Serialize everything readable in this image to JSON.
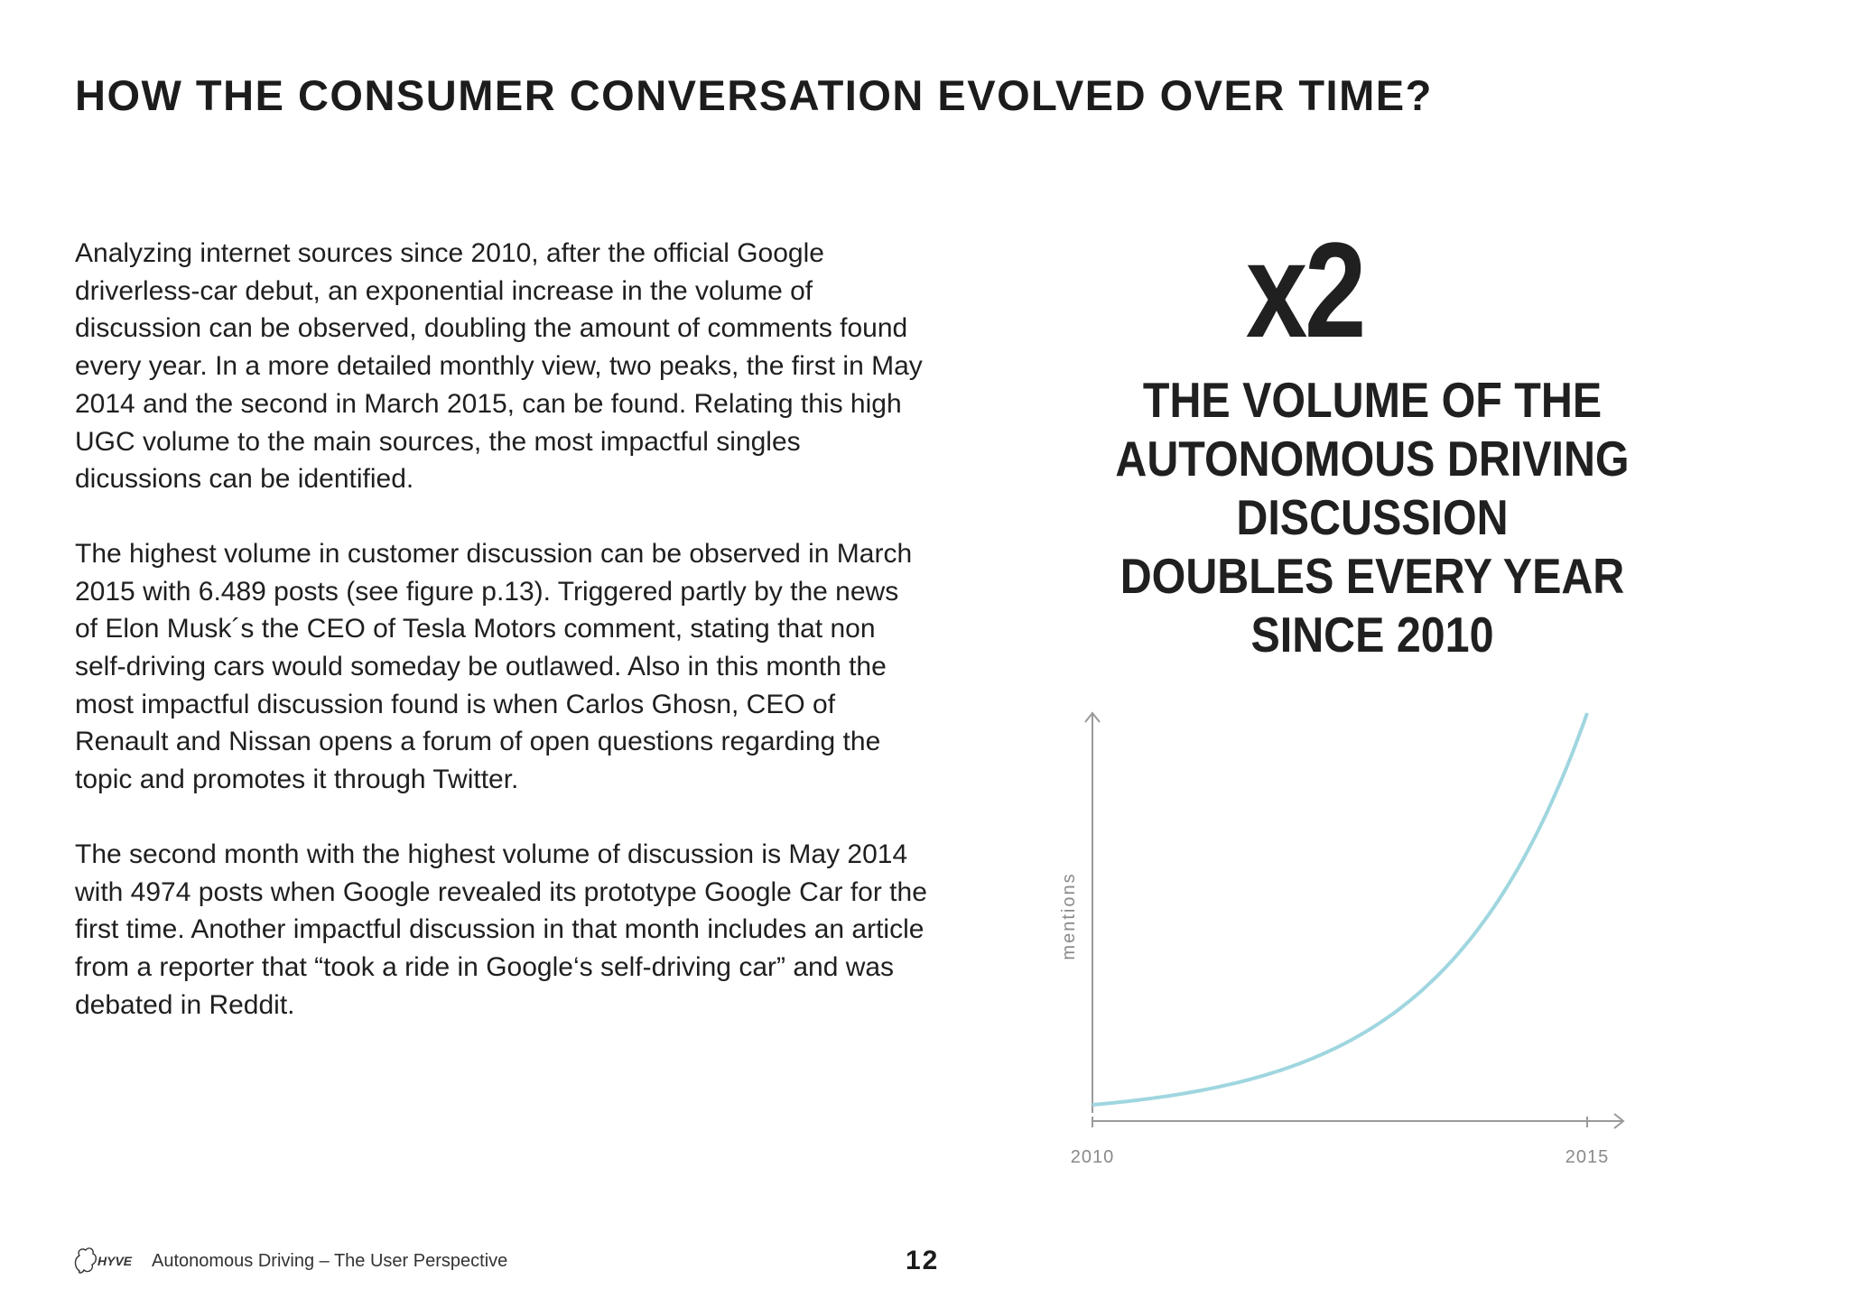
{
  "page": {
    "title": "HOW THE CONSUMER CONVERSATION EVOLVED OVER TIME?",
    "paragraphs": [
      "Analyzing internet sources since 2010, after the official Google driverless-car debut, an exponential increase in the volume of discussion can be observed, doubling the amount of comments found every year. In a more detailed monthly view, two peaks, the first in May 2014 and the second in March 2015, can be found. Relating this high UGC volume to the main sources, the most impactful singles dicussions can be identified.",
      "The highest volume in customer discussion can be observed in March 2015 with 6.489 posts (see figure p.13). Triggered partly by the news of Elon Musk´s the CEO of Tesla Motors comment, stating that non self-driving cars would someday be outlawed. Also in this month the most impactful discussion found is when Carlos Ghosn, CEO of Renault and Nissan opens a forum of open questions regarding the topic and promotes it through Twitter.",
      "The second month with the highest volume of discussion is May 2014 with 4974 posts when Google revealed its prototype Google Car for the first time. Another impactful discussion in that month includes an article from a reporter that “took a ride in Google‘s self-driving car” and was debated in Reddit."
    ],
    "callout": {
      "big_number": "x2",
      "headline": "THE VOLUME OF THE\nAUTONOMOUS DRIVING\nDISCUSSION\nDOUBLES EVERY YEAR\nSINCE 2010"
    },
    "footer": {
      "brand": "HYVE",
      "text": "Autonomous Driving – The User Perspective",
      "page_number": "12"
    }
  },
  "chart_data": {
    "type": "line",
    "title": "",
    "xlabel": "",
    "ylabel": "mentions",
    "x_ticks": [
      "2010",
      "2015"
    ],
    "xlim": [
      2010,
      2015
    ],
    "growth": "exponential, doubling every year",
    "series": [
      {
        "x": [
          2010,
          2011,
          2012,
          2013,
          2014,
          2015
        ],
        "y": [
          1,
          2,
          4,
          8,
          16,
          32
        ]
      }
    ],
    "line_color": "#9fd6df",
    "axis_color": "#9a9a9a",
    "grid": false
  }
}
